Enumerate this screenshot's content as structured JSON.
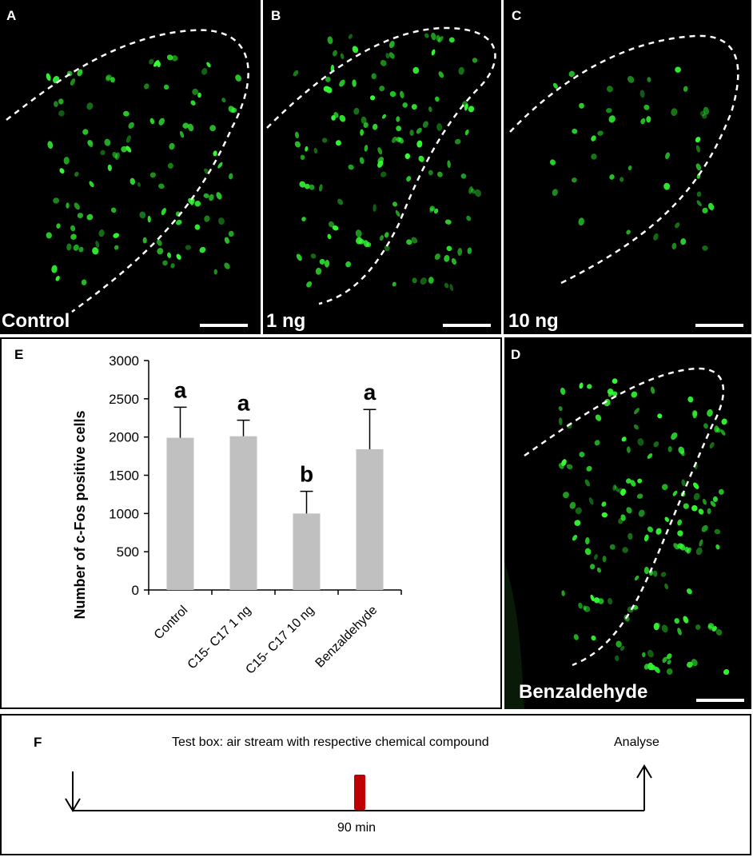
{
  "panels": {
    "a": {
      "letter": "A",
      "condition": "Control"
    },
    "b": {
      "letter": "B",
      "condition": "1 ng"
    },
    "c": {
      "letter": "C",
      "condition": "10 ng"
    },
    "d": {
      "letter": "D",
      "condition": "Benzaldehyde"
    }
  },
  "panel_e": {
    "letter": "E"
  },
  "chart_data": {
    "type": "bar",
    "categories": [
      "Control",
      "C15- C17  1 ng",
      "C15- C17 10 ng",
      "Benzaldehyde"
    ],
    "values": [
      1990,
      2010,
      1000,
      1840
    ],
    "error_upper": [
      2390,
      2220,
      1290,
      2360
    ],
    "significance": [
      "a",
      "a",
      "b",
      "a"
    ],
    "ylabel": "Number of c-Fos positive cells",
    "xlabel": "",
    "ylim": [
      0,
      3000
    ],
    "yticks": [
      0,
      500,
      1000,
      1500,
      2000,
      2500,
      3000
    ],
    "bar_color": "#c0c0c0",
    "grid": false
  },
  "panel_f": {
    "letter": "F",
    "test_box_text": "Test box: air stream with respective chemical compound",
    "analyse_text": "Analyse",
    "duration_text": "90 min",
    "marker_color": "#c00000"
  },
  "colors": {
    "cell_green": "#33ff33",
    "outline": "#ffffff"
  }
}
